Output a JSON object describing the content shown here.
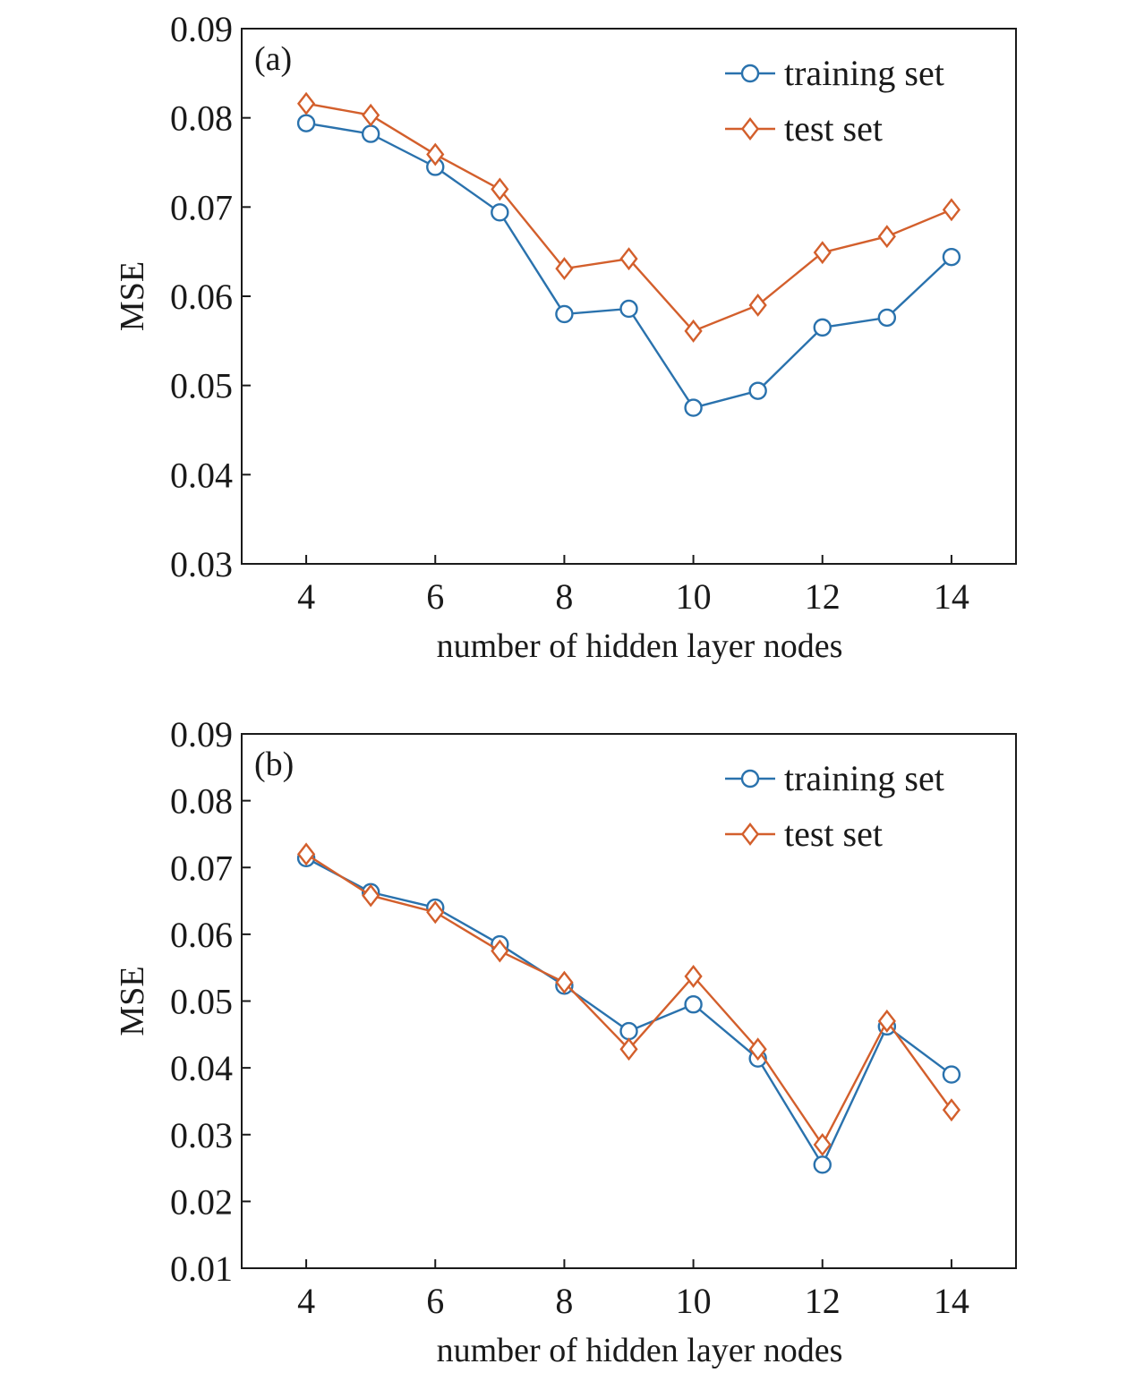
{
  "colors": {
    "training": "#2a72ad",
    "test": "#d35f2c",
    "axis": "#1a1a1a"
  },
  "chart_data": [
    {
      "type": "line",
      "panel_label": "(a)",
      "xlabel": "number of hidden layer nodes",
      "ylabel": "MSE",
      "xlim": [
        3,
        15
      ],
      "ylim": [
        0.03,
        0.09
      ],
      "xticks": [
        4,
        6,
        8,
        10,
        12,
        14
      ],
      "xtick_labels": [
        "4",
        "6",
        "8",
        "10",
        "12",
        "14"
      ],
      "yticks": [
        0.03,
        0.04,
        0.05,
        0.06,
        0.07,
        0.08,
        0.09
      ],
      "ytick_labels": [
        "0.03",
        "0.04",
        "0.05",
        "0.06",
        "0.07",
        "0.08",
        "0.09"
      ],
      "grid": false,
      "legend_position": "top-right",
      "x": [
        4,
        5,
        6,
        7,
        8,
        9,
        10,
        11,
        12,
        13,
        14
      ],
      "series": [
        {
          "name": "training set",
          "marker": "circle",
          "values": [
            0.0794,
            0.0782,
            0.0745,
            0.0694,
            0.058,
            0.0586,
            0.0475,
            0.0494,
            0.0565,
            0.0576,
            0.0644
          ]
        },
        {
          "name": "test set",
          "marker": "diamond",
          "values": [
            0.0816,
            0.0803,
            0.0759,
            0.072,
            0.0631,
            0.0642,
            0.0561,
            0.059,
            0.0649,
            0.0667,
            0.0697
          ]
        }
      ]
    },
    {
      "type": "line",
      "panel_label": "(b)",
      "xlabel": "number of hidden layer nodes",
      "ylabel": "MSE",
      "xlim": [
        3,
        15
      ],
      "ylim": [
        0.01,
        0.09
      ],
      "xticks": [
        4,
        6,
        8,
        10,
        12,
        14
      ],
      "xtick_labels": [
        "4",
        "6",
        "8",
        "10",
        "12",
        "14"
      ],
      "yticks": [
        0.01,
        0.02,
        0.03,
        0.04,
        0.05,
        0.06,
        0.07,
        0.08,
        0.09
      ],
      "ytick_labels": [
        "0.01",
        "0.02",
        "0.03",
        "0.04",
        "0.05",
        "0.06",
        "0.07",
        "0.08",
        "0.09"
      ],
      "grid": false,
      "legend_position": "top-right",
      "x": [
        4,
        5,
        6,
        7,
        8,
        9,
        10,
        11,
        12,
        13,
        14
      ],
      "series": [
        {
          "name": "training set",
          "marker": "circle",
          "values": [
            0.0714,
            0.0663,
            0.064,
            0.0585,
            0.0523,
            0.0455,
            0.0495,
            0.0414,
            0.0255,
            0.0462,
            0.039
          ]
        },
        {
          "name": "test set",
          "marker": "diamond",
          "values": [
            0.072,
            0.0658,
            0.0633,
            0.0575,
            0.0528,
            0.0428,
            0.0537,
            0.0428,
            0.0285,
            0.047,
            0.0337
          ]
        }
      ]
    }
  ]
}
